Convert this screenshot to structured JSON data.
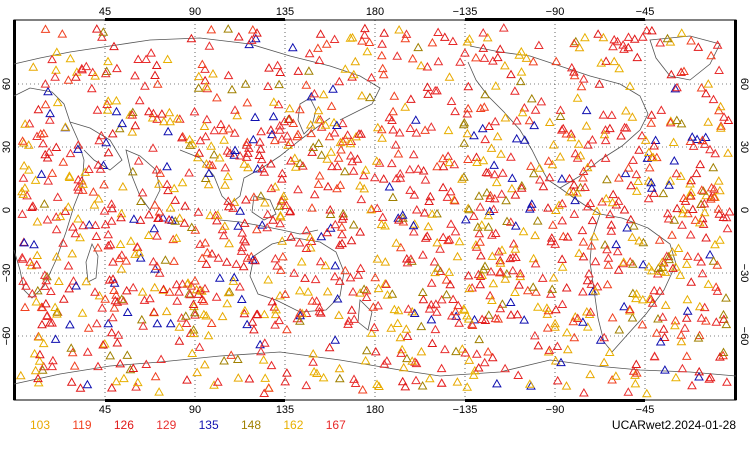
{
  "map": {
    "projection": "cylindrical equidistant",
    "lon_ticks": [
      "45",
      "90",
      "135",
      "180",
      "−135",
      "−90",
      "−45"
    ],
    "lat_ticks_left": [
      "60",
      "30",
      "0",
      "−30",
      "−60"
    ],
    "lat_ticks_right": [
      "60",
      "30",
      "0",
      "−30",
      "−60"
    ],
    "grid": "dotted",
    "marker": "triangle-outline"
  },
  "legend": {
    "items": [
      {
        "label": "103",
        "color": "#e8a800"
      },
      {
        "label": "119",
        "color": "#f04020"
      },
      {
        "label": "126",
        "color": "#e01818"
      },
      {
        "label": "129",
        "color": "#e83030"
      },
      {
        "label": "135",
        "color": "#1010b0"
      },
      {
        "label": "148",
        "color": "#a08000"
      },
      {
        "label": "162",
        "color": "#e8b000"
      },
      {
        "label": "167",
        "color": "#e82828"
      }
    ]
  },
  "stamp": "UCARwet2.2024-01-28"
}
